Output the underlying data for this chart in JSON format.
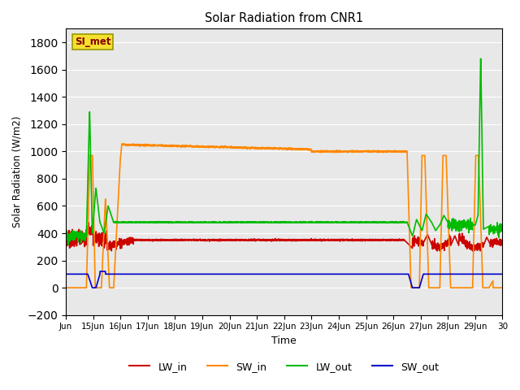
{
  "title": "Solar Radiation from CNR1",
  "xlabel": "Time",
  "ylabel": "Solar Radiation (W/m2)",
  "ylim": [
    -200,
    1900
  ],
  "yticks": [
    -200,
    0,
    200,
    400,
    600,
    800,
    1000,
    1200,
    1400,
    1600,
    1800
  ],
  "background_color": "#e8e8e8",
  "legend_label": "SI_met",
  "legend_box_facecolor": "#f5e030",
  "legend_box_edgecolor": "#999900",
  "legend_box_text_color": "#880000",
  "series": {
    "LW_in": {
      "color": "#cc0000",
      "linewidth": 1.2
    },
    "SW_in": {
      "color": "#ff8800",
      "linewidth": 1.2
    },
    "LW_out": {
      "color": "#00bb00",
      "linewidth": 1.2
    },
    "SW_out": {
      "color": "#0000cc",
      "linewidth": 1.2
    }
  },
  "x_tick_labels": [
    "Jun",
    "15Jun",
    "16Jun",
    "17Jun",
    "18Jun",
    "19Jun",
    "20Jun",
    "21Jun",
    "22Jun",
    "23Jun",
    "24Jun",
    "25Jun",
    "26Jun",
    "27Jun",
    "28Jun",
    "29Jun",
    "30"
  ],
  "x_tick_positions": [
    0,
    1,
    2,
    3,
    4,
    5,
    6,
    7,
    8,
    9,
    10,
    11,
    12,
    13,
    14,
    15,
    16
  ]
}
